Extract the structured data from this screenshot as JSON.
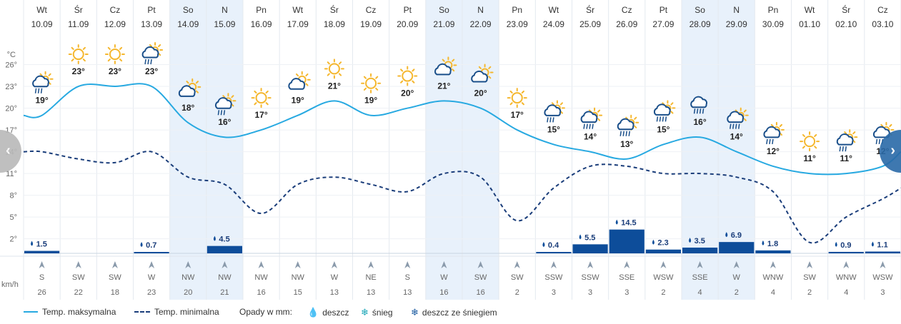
{
  "chart_data": {
    "type": "line",
    "days": [
      {
        "name": "Wt",
        "date": "10.09",
        "max": 19,
        "min": 14,
        "weather": "sun-rain",
        "precip": 1.5,
        "precip_label": "1.5",
        "wind_dir": "S",
        "wind_speed": "26",
        "highlight": false
      },
      {
        "name": "Śr",
        "date": "11.09",
        "max": 23,
        "min": 13,
        "weather": "sun",
        "precip": 0,
        "precip_label": "",
        "wind_dir": "SW",
        "wind_speed": "22",
        "highlight": false
      },
      {
        "name": "Cz",
        "date": "12.09",
        "max": 23,
        "min": 12.5,
        "weather": "sun",
        "precip": 0,
        "precip_label": "",
        "wind_dir": "SW",
        "wind_speed": "18",
        "highlight": false
      },
      {
        "name": "Pt",
        "date": "13.09",
        "max": 23,
        "min": 14,
        "weather": "sun-rain",
        "precip": 0.7,
        "precip_label": "0.7",
        "wind_dir": "W",
        "wind_speed": "23",
        "highlight": false
      },
      {
        "name": "So",
        "date": "14.09",
        "max": 18,
        "min": 10.5,
        "weather": "sun-cloud",
        "precip": 0,
        "precip_label": "",
        "wind_dir": "NW",
        "wind_speed": "20",
        "highlight": true
      },
      {
        "name": "N",
        "date": "15.09",
        "max": 16,
        "min": 9.5,
        "weather": "sun-rain",
        "precip": 4.5,
        "precip_label": "4.5",
        "wind_dir": "NW",
        "wind_speed": "21",
        "highlight": true
      },
      {
        "name": "Pn",
        "date": "16.09",
        "max": 17,
        "min": 5.5,
        "weather": "sun",
        "precip": 0,
        "precip_label": "",
        "wind_dir": "NW",
        "wind_speed": "16",
        "highlight": false
      },
      {
        "name": "Wt",
        "date": "17.09",
        "max": 19,
        "min": 9.5,
        "weather": "sun-cloud",
        "precip": 0,
        "precip_label": "",
        "wind_dir": "NW",
        "wind_speed": "15",
        "highlight": false
      },
      {
        "name": "Śr",
        "date": "18.09",
        "max": 21,
        "min": 10.5,
        "weather": "sun",
        "precip": 0,
        "precip_label": "",
        "wind_dir": "W",
        "wind_speed": "13",
        "highlight": false
      },
      {
        "name": "Cz",
        "date": "19.09",
        "max": 19,
        "min": 9.5,
        "weather": "sun",
        "precip": 0,
        "precip_label": "",
        "wind_dir": "NE",
        "wind_speed": "13",
        "highlight": false
      },
      {
        "name": "Pt",
        "date": "20.09",
        "max": 20,
        "min": 8.5,
        "weather": "sun",
        "precip": 0,
        "precip_label": "",
        "wind_dir": "S",
        "wind_speed": "13",
        "highlight": false
      },
      {
        "name": "So",
        "date": "21.09",
        "max": 21,
        "min": 11,
        "weather": "sun-cloud",
        "precip": 0,
        "precip_label": "",
        "wind_dir": "W",
        "wind_speed": "16",
        "highlight": true
      },
      {
        "name": "N",
        "date": "22.09",
        "max": 20,
        "min": 10.5,
        "weather": "sun-cloud",
        "precip": 0,
        "precip_label": "",
        "wind_dir": "SW",
        "wind_speed": "16",
        "highlight": true
      },
      {
        "name": "Pn",
        "date": "23.09",
        "max": 17,
        "min": 4.5,
        "weather": "sun",
        "precip": 0,
        "precip_label": "",
        "wind_dir": "SW",
        "wind_speed": "2",
        "highlight": false
      },
      {
        "name": "Wt",
        "date": "24.09",
        "max": 15,
        "min": 9,
        "weather": "sun-rain",
        "precip": 0.4,
        "precip_label": "0.4",
        "wind_dir": "SSW",
        "wind_speed": "3",
        "highlight": false
      },
      {
        "name": "Śr",
        "date": "25.09",
        "max": 14,
        "min": 12,
        "weather": "sun-rain-heavy",
        "precip": 5.5,
        "precip_label": "5.5",
        "wind_dir": "SSW",
        "wind_speed": "3",
        "highlight": false
      },
      {
        "name": "Cz",
        "date": "26.09",
        "max": 13,
        "min": 12,
        "weather": "sun-rain-heavy",
        "precip": 14.5,
        "precip_label": "14.5",
        "wind_dir": "SSE",
        "wind_speed": "3",
        "highlight": false
      },
      {
        "name": "Pt",
        "date": "27.09",
        "max": 15,
        "min": 11,
        "weather": "sun-rain-heavy",
        "precip": 2.3,
        "precip_label": "2.3",
        "wind_dir": "WSW",
        "wind_speed": "2",
        "highlight": false
      },
      {
        "name": "So",
        "date": "28.09",
        "max": 16,
        "min": 11,
        "weather": "rain-heavy",
        "precip": 3.5,
        "precip_label": "3.5",
        "wind_dir": "SSE",
        "wind_speed": "4",
        "highlight": true
      },
      {
        "name": "N",
        "date": "29.09",
        "max": 14,
        "min": 10.5,
        "weather": "sun-rain-heavy",
        "precip": 6.9,
        "precip_label": "6.9",
        "wind_dir": "W",
        "wind_speed": "2",
        "highlight": true
      },
      {
        "name": "Pn",
        "date": "30.09",
        "max": 12,
        "min": 8.5,
        "weather": "sun-rain",
        "precip": 1.8,
        "precip_label": "1.8",
        "wind_dir": "WNW",
        "wind_speed": "4",
        "highlight": false
      },
      {
        "name": "Wt",
        "date": "01.10",
        "max": 11,
        "min": 1.5,
        "weather": "sun",
        "precip": 0,
        "precip_label": "",
        "wind_dir": "SW",
        "wind_speed": "2",
        "highlight": false
      },
      {
        "name": "Śr",
        "date": "02.10",
        "max": 11,
        "min": 5,
        "weather": "sun-rain",
        "precip": 0.9,
        "precip_label": "0.9",
        "wind_dir": "WNW",
        "wind_speed": "4",
        "highlight": false
      },
      {
        "name": "Cz",
        "date": "03.10",
        "max": 12,
        "min": 7.5,
        "weather": "sun-rain",
        "precip": 1.1,
        "precip_label": "1.1",
        "wind_dir": "WSW",
        "wind_speed": "3",
        "highlight": false
      }
    ],
    "y_unit": "°C",
    "y_ticks": [
      "26°",
      "23°",
      "20°",
      "17°",
      "14°",
      "11°",
      "8°",
      "5°",
      "2°"
    ],
    "y_tick_values": [
      26,
      23,
      20,
      17,
      14,
      11,
      8,
      5,
      2
    ],
    "ylim": [
      0,
      29
    ],
    "wind_unit": "km/h",
    "grid": true,
    "legend_position": "bottom-left"
  },
  "legend": {
    "max_label": "Temp. maksymalna",
    "min_label": "Temp. minimalna",
    "precip_label": "Opady w mm:",
    "rain_label": "deszcz",
    "snow_label": "śnieg",
    "rain_snow_label": "deszcz ze śniegiem"
  },
  "colors": {
    "max_line": "#27a9e1",
    "min_line": "#1a3d7a",
    "precip_bar": "#0d4d9a",
    "weekend_bg": "#e8f1fb",
    "sun": "#f5b72e",
    "cloud": "#1a4f8a"
  },
  "nav": {
    "prev_icon": "chevron-left-icon",
    "next_icon": "chevron-right-icon"
  }
}
